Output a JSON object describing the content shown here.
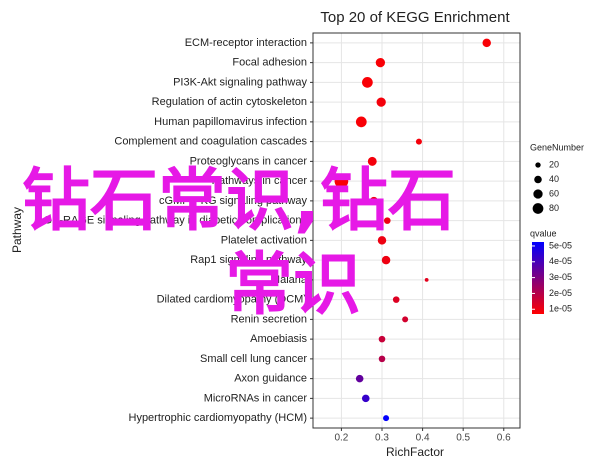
{
  "chart_data": {
    "type": "scatter",
    "title": "Top 20 of KEGG Enrichment",
    "x_label": "RichFactor",
    "y_label": "Pathway",
    "categories": [
      "ECM-receptor interaction",
      "Focal adhesion",
      "PI3K-Akt signaling pathway",
      "Regulation of actin cytoskeleton",
      "Human papillomavirus infection",
      "Complement and coagulation cascades",
      "Proteoglycans in cancer",
      "Pathways in cancer",
      "cGMP-PKG signaling pathway",
      "AGE-RAGE signaling pathway in diabetic complications",
      "Platelet activation",
      "Rap1 signaling pathway",
      "Malaria",
      "Dilated cardiomyopathy (DCM)",
      "Renin secretion",
      "Amoebiasis",
      "Small cell lung cancer",
      "Axon guidance",
      "MicroRNAs in cancer",
      "Hypertrophic cardiomyopathy (HCM)"
    ],
    "x": [
      0.558,
      0.296,
      0.264,
      0.298,
      0.249,
      0.391,
      0.276,
      0.2,
      0.28,
      0.313,
      0.3,
      0.31,
      0.41,
      0.335,
      0.357,
      0.3,
      0.3,
      0.245,
      0.26,
      0.31
    ],
    "gene_number": [
      50,
      60,
      80,
      60,
      80,
      25,
      55,
      130,
      45,
      30,
      50,
      50,
      10,
      30,
      25,
      30,
      30,
      40,
      40,
      25
    ],
    "qvalue": [
      8e-06,
      8e-06,
      8e-06,
      9e-06,
      8e-06,
      9e-06,
      9e-06,
      8e-06,
      1e-05,
      1e-05,
      1e-05,
      1e-05,
      1.2e-05,
      1.3e-05,
      1.5e-05,
      1.7e-05,
      2e-05,
      3.5e-05,
      4.3e-05,
      5.2e-05
    ],
    "xlim": [
      0.13,
      0.64
    ],
    "xticks": [
      0.2,
      0.3,
      0.4,
      0.5,
      0.6
    ],
    "grid": true,
    "size_legend": {
      "title": "GeneNumber",
      "values": [
        20,
        40,
        60,
        80
      ]
    },
    "color_legend": {
      "title": "qvalue",
      "lim": [
        7e-06,
        5.25e-05
      ],
      "ticks": [
        {
          "value": 5e-05,
          "label": "5e-05"
        },
        {
          "value": 4e-05,
          "label": "4e-05"
        },
        {
          "value": 3e-05,
          "label": "3e-05"
        },
        {
          "value": 2e-05,
          "label": "2e-05"
        },
        {
          "value": 1e-05,
          "label": "1e-05"
        }
      ],
      "low_color": "#ff0000",
      "high_color": "#0000ff"
    },
    "watermark": [
      "钻石常识,钻石",
      "常识"
    ]
  }
}
